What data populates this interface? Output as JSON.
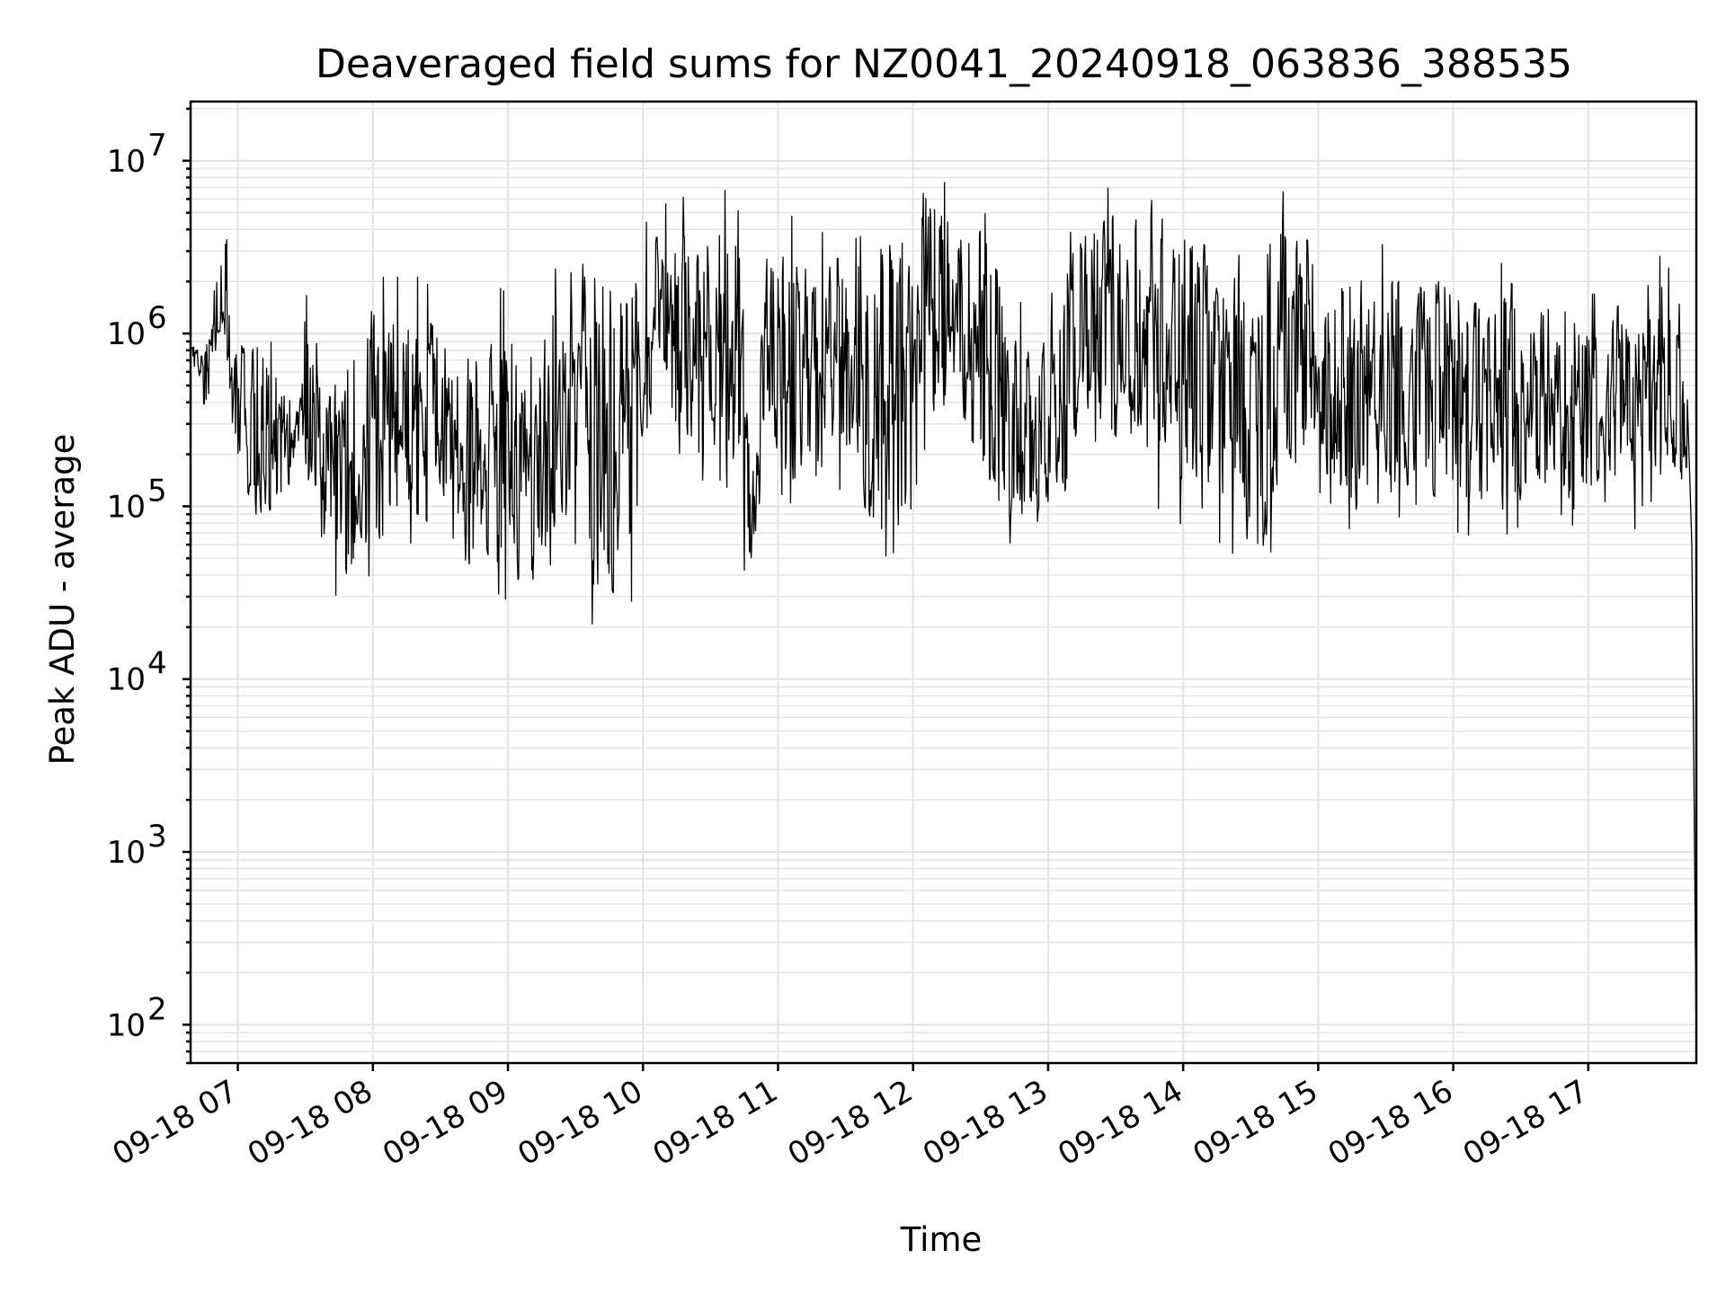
{
  "chart_data": {
    "type": "line",
    "title": "Deaveraged field sums for NZ0041_20240918_063836_388535",
    "xlabel": "Time",
    "ylabel": "Peak ADU - average",
    "y_scale": "log",
    "ylim": [
      60,
      22000000
    ],
    "xlim": [
      "2024-09-18 06:39",
      "2024-09-18 17:48"
    ],
    "x_tick_labels": [
      "09-18 07",
      "09-18 08",
      "09-18 09",
      "09-18 10",
      "09-18 11",
      "09-18 12",
      "09-18 13",
      "09-18 14",
      "09-18 15",
      "09-18 16",
      "09-18 17"
    ],
    "y_tick_labels": [
      {
        "base": "10",
        "exp": "2"
      },
      {
        "base": "10",
        "exp": "3"
      },
      {
        "base": "10",
        "exp": "4"
      },
      {
        "base": "10",
        "exp": "5"
      },
      {
        "base": "10",
        "exp": "6"
      },
      {
        "base": "10",
        "exp": "7"
      }
    ],
    "grid": true,
    "line_color": "#000000",
    "series": [
      {
        "x": [
          "2024-09-18 06:39",
          "2024-09-18 06:45",
          "2024-09-18 06:52",
          "2024-09-18 06:55",
          "2024-09-18 07:00",
          "2024-09-18 07:10",
          "2024-09-18 07:20",
          "2024-09-18 07:30",
          "2024-09-18 07:40",
          "2024-09-18 07:50",
          "2024-09-18 08:00",
          "2024-09-18 08:10",
          "2024-09-18 08:20",
          "2024-09-18 08:30",
          "2024-09-18 08:40",
          "2024-09-18 08:50",
          "2024-09-18 09:00",
          "2024-09-18 09:10",
          "2024-09-18 09:20",
          "2024-09-18 09:30",
          "2024-09-18 09:38",
          "2024-09-18 09:45",
          "2024-09-18 09:55",
          "2024-09-18 10:05",
          "2024-09-18 10:15",
          "2024-09-18 10:25",
          "2024-09-18 10:35",
          "2024-09-18 10:42",
          "2024-09-18 10:48",
          "2024-09-18 10:55",
          "2024-09-18 11:05",
          "2024-09-18 11:15",
          "2024-09-18 11:25",
          "2024-09-18 11:35",
          "2024-09-18 11:45",
          "2024-09-18 11:55",
          "2024-09-18 12:05",
          "2024-09-18 12:15",
          "2024-09-18 12:25",
          "2024-09-18 12:35",
          "2024-09-18 12:45",
          "2024-09-18 12:55",
          "2024-09-18 13:05",
          "2024-09-18 13:15",
          "2024-09-18 13:25",
          "2024-09-18 13:35",
          "2024-09-18 13:45",
          "2024-09-18 13:55",
          "2024-09-18 14:05",
          "2024-09-18 14:15",
          "2024-09-18 14:25",
          "2024-09-18 14:35",
          "2024-09-18 14:45",
          "2024-09-18 14:55",
          "2024-09-18 15:05",
          "2024-09-18 15:15",
          "2024-09-18 15:25",
          "2024-09-18 15:35",
          "2024-09-18 15:45",
          "2024-09-18 15:55",
          "2024-09-18 16:05",
          "2024-09-18 16:15",
          "2024-09-18 16:25",
          "2024-09-18 16:35",
          "2024-09-18 16:45",
          "2024-09-18 16:55",
          "2024-09-18 17:05",
          "2024-09-18 17:15",
          "2024-09-18 17:25",
          "2024-09-18 17:35",
          "2024-09-18 17:41",
          "2024-09-18 17:44",
          "2024-09-18 17:46",
          "2024-09-18 17:48"
        ],
        "lo": [
          600000,
          550000,
          900000,
          400000,
          150000,
          80000,
          120000,
          150000,
          45000,
          40000,
          60000,
          80000,
          90000,
          70000,
          45000,
          50000,
          40000,
          35000,
          70000,
          60000,
          28000,
          30000,
          40000,
          500000,
          300000,
          200000,
          200000,
          150000,
          25000,
          200000,
          150000,
          120000,
          200000,
          120000,
          70000,
          80000,
          300000,
          400000,
          200000,
          120000,
          80000,
          70000,
          80000,
          400000,
          300000,
          200000,
          150000,
          120000,
          100000,
          90000,
          70000,
          50000,
          150000,
          200000,
          150000,
          100000,
          80000,
          120000,
          150000,
          100000,
          100000,
          80000,
          100000,
          120000,
          80000,
          70000,
          150000,
          150000,
          80000,
          200000,
          150000,
          120000,
          60000,
          70
        ],
        "hi": [
          900000,
          800000,
          1600000,
          2500000,
          1200000,
          900000,
          1000000,
          1200000,
          800000,
          400000,
          1500000,
          1500000,
          1500000,
          1200000,
          600000,
          1500000,
          1200000,
          500000,
          1500000,
          4000000,
          1500000,
          1200000,
          2500000,
          3500000,
          4500000,
          4000000,
          5000000,
          4000000,
          500000,
          3000000,
          3500000,
          2500000,
          3000000,
          2500000,
          3000000,
          5000000,
          7000000,
          8000000,
          5000000,
          3000000,
          1200000,
          800000,
          1500000,
          5000000,
          5000000,
          4500000,
          6000000,
          5000000,
          4000000,
          2500000,
          2000000,
          1500000,
          5000000,
          3500000,
          2500000,
          2000000,
          2500000,
          2000000,
          2000000,
          2000000,
          1500000,
          1500000,
          2000000,
          1500000,
          1500000,
          1200000,
          1200000,
          1500000,
          1200000,
          2500000,
          2000000,
          500000,
          150000,
          80000
        ]
      }
    ]
  }
}
